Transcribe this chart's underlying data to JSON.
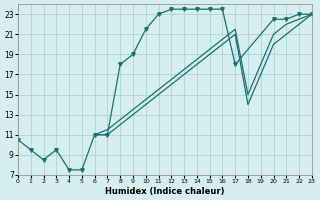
{
  "xlabel": "Humidex (Indice chaleur)",
  "bg_color": "#d6eef0",
  "grid_color": "#aacccc",
  "line_color": "#1a7070",
  "xlim": [
    0,
    23
  ],
  "ylim": [
    7,
    24
  ],
  "yticks": [
    7,
    9,
    11,
    13,
    15,
    17,
    19,
    21,
    23
  ],
  "xticks": [
    0,
    1,
    2,
    3,
    4,
    5,
    6,
    7,
    8,
    9,
    10,
    11,
    12,
    13,
    14,
    15,
    16,
    17,
    18,
    19,
    20,
    21,
    22,
    23
  ],
  "curve1_x": [
    0,
    1,
    2,
    3,
    4,
    5,
    6,
    7,
    8,
    9,
    10,
    11,
    12,
    13,
    14,
    15,
    16,
    17,
    20,
    21,
    22,
    23
  ],
  "curve1_y": [
    10.5,
    9.5,
    8.5,
    9.5,
    7.5,
    7.5,
    11.0,
    11.0,
    18.0,
    19.0,
    21.5,
    23.0,
    23.5,
    23.5,
    23.5,
    23.5,
    23.5,
    18.0,
    22.5,
    22.5,
    23.0,
    23.0
  ],
  "curve2_x": [
    6,
    7,
    8,
    9,
    10,
    11,
    12,
    13,
    14,
    15,
    16,
    17,
    18,
    20,
    21,
    22,
    23
  ],
  "curve2_y": [
    11.0,
    11.0,
    12.0,
    13.0,
    14.0,
    15.0,
    16.0,
    17.0,
    18.0,
    19.0,
    20.0,
    21.0,
    14.0,
    20.0,
    21.0,
    22.0,
    23.0
  ],
  "curve3_x": [
    6,
    7,
    8,
    9,
    10,
    11,
    12,
    13,
    14,
    15,
    16,
    17,
    18,
    20,
    21,
    22,
    23
  ],
  "curve3_y": [
    11.0,
    11.5,
    12.5,
    13.5,
    14.5,
    15.5,
    16.5,
    17.5,
    18.5,
    19.5,
    20.5,
    21.5,
    15.0,
    21.0,
    22.0,
    22.5,
    23.0
  ]
}
